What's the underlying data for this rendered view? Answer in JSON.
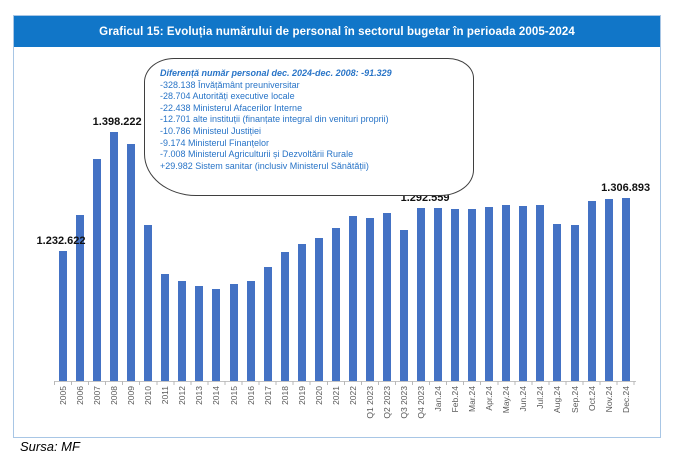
{
  "header": {
    "title": "Graficul 15: Evoluția numărului de personal în sectorul bugetar în perioada 2005-2024",
    "bg_color": "#1176c8",
    "text_color": "#ffffff"
  },
  "callout": {
    "heading": "Diferență număr personal dec. 2024-dec. 2008: -91.329",
    "lines": [
      "-328.138 Învățământ preuniversitar",
      "-28.704 Autorități executive locale",
      "-22.438 Ministerul Afacerilor Interne",
      "-12.701 alte instituții (finanțate integral din venituri proprii)",
      "-10.786 Ministeul Justiției",
      "-9.174 Ministerul Finanțelor",
      "-7.008 Ministerul Agriculturii și Dezvoltării Rurale",
      "+29.982 Sistem sanitar (inclusiv Ministerul Sănătății)"
    ],
    "text_color": "#2874c7"
  },
  "chart_data": {
    "type": "bar",
    "title": "Graficul 15: Evoluția numărului de personal în sectorul bugetar în perioada 2005-2024",
    "xlabel": "",
    "ylabel": "",
    "grid": false,
    "legend": "none",
    "bar_color": "#4472c4",
    "ylim": [
      1050000,
      1512000
    ],
    "categories": [
      "2005",
      "2006",
      "2007",
      "2008",
      "2009",
      "2010",
      "2011",
      "2012",
      "2013",
      "2014",
      "2015",
      "2016",
      "2017",
      "2018",
      "2019",
      "2020",
      "2021",
      "2022",
      "Q1 2023",
      "Q2 2023",
      "Q3 2023",
      "Q4 2023",
      "Jan.24",
      "Feb.24",
      "Mar.24",
      "Apr.24",
      "May.24",
      "Jun.24",
      "Jul.24",
      "Aug.24",
      "Sep.24",
      "Oct.24",
      "Nov.24",
      "Dec.24"
    ],
    "values": [
      1232622,
      1281700,
      1360300,
      1398222,
      1381300,
      1267700,
      1200400,
      1190500,
      1183500,
      1179300,
      1186300,
      1190500,
      1210200,
      1231200,
      1242400,
      1249500,
      1263500,
      1280300,
      1277500,
      1284500,
      1260700,
      1292559,
      1291500,
      1290100,
      1290100,
      1293000,
      1295800,
      1294400,
      1295800,
      1269100,
      1267700,
      1301400,
      1305000,
      1306893
    ],
    "data_labels": [
      {
        "index": 0,
        "text": "1.232.622",
        "dx": -2
      },
      {
        "index": 3,
        "text": "1.398.222",
        "dx": 3
      },
      {
        "index": 21,
        "text": "1.292.559",
        "dx": 4
      },
      {
        "index": 33,
        "text": "1.306.893",
        "dx": 0
      }
    ]
  },
  "footer": {
    "source_note": "Sursa: MF"
  }
}
